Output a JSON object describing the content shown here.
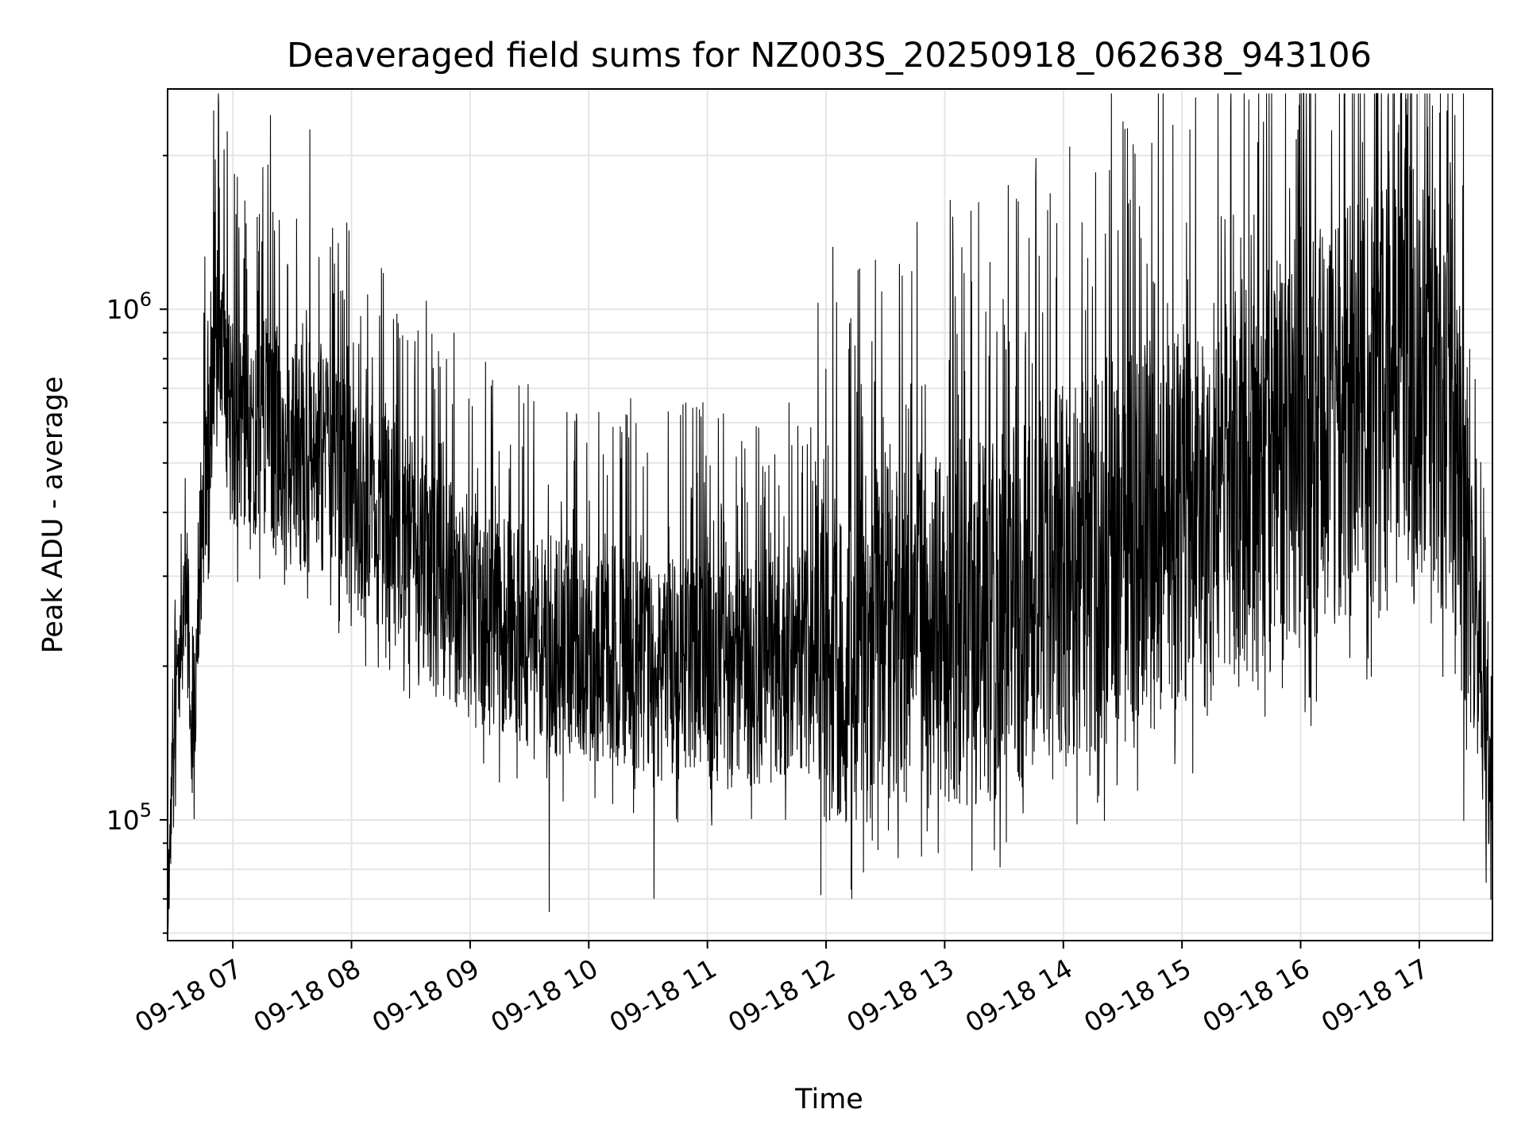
{
  "chart_data": {
    "type": "line",
    "title": "Deaveraged field sums for NZ003S_20250918_062638_943106",
    "xlabel": "Time",
    "ylabel": "Peak ADU - average",
    "xscale": "time",
    "yscale": "log",
    "xlim": [
      "09-18 06:27",
      "09-18 17:37"
    ],
    "ylim": [
      58000,
      2700000
    ],
    "x_ticks": [
      "09-18 07",
      "09-18 08",
      "09-18 09",
      "09-18 10",
      "09-18 11",
      "09-18 12",
      "09-18 13",
      "09-18 14",
      "09-18 15",
      "09-18 16",
      "09-18 17"
    ],
    "y_ticks": [
      {
        "base": "10",
        "exp": "5",
        "value": 100000
      },
      {
        "base": "10",
        "exp": "6",
        "value": 1000000
      }
    ],
    "grid": true,
    "line_color": "#000000",
    "series": [
      {
        "points": [
          [
            "09-18 06:27",
            72000
          ],
          [
            "09-18 06:31",
            150000
          ],
          [
            "09-18 06:36",
            280000
          ],
          [
            "09-18 06:40",
            130000
          ],
          [
            "09-18 06:46",
            500000
          ],
          [
            "09-18 06:52",
            900000
          ],
          [
            "09-18 06:58",
            650000
          ],
          [
            "09-18 07:05",
            550000
          ],
          [
            "09-18 07:15",
            600000
          ],
          [
            "09-18 07:25",
            520000
          ],
          [
            "09-18 07:35",
            480000
          ],
          [
            "09-18 07:45",
            500000
          ],
          [
            "09-18 08:00",
            430000
          ],
          [
            "09-18 08:15",
            380000
          ],
          [
            "09-18 08:30",
            330000
          ],
          [
            "09-18 08:45",
            290000
          ],
          [
            "09-18 09:00",
            260000
          ],
          [
            "09-18 09:15",
            240000
          ],
          [
            "09-18 09:30",
            230000
          ],
          [
            "09-18 09:45",
            220000
          ],
          [
            "09-18 10:00",
            215000
          ],
          [
            "09-18 10:20",
            205000
          ],
          [
            "09-18 10:40",
            200000
          ],
          [
            "09-18 11:00",
            195000
          ],
          [
            "09-18 11:20",
            190000
          ],
          [
            "09-18 11:40",
            200000
          ],
          [
            "09-18 12:00",
            210000
          ],
          [
            "09-18 12:20",
            220000
          ],
          [
            "09-18 12:40",
            230000
          ],
          [
            "09-18 13:00",
            240000
          ],
          [
            "09-18 13:20",
            250000
          ],
          [
            "09-18 13:40",
            270000
          ],
          [
            "09-18 14:00",
            300000
          ],
          [
            "09-18 14:20",
            330000
          ],
          [
            "09-18 14:40",
            360000
          ],
          [
            "09-18 15:00",
            390000
          ],
          [
            "09-18 15:20",
            430000
          ],
          [
            "09-18 15:40",
            480000
          ],
          [
            "09-18 16:00",
            560000
          ],
          [
            "09-18 16:20",
            620000
          ],
          [
            "09-18 16:40",
            680000
          ],
          [
            "09-18 17:00",
            720000
          ],
          [
            "09-18 17:15",
            700000
          ],
          [
            "09-18 17:25",
            280000
          ],
          [
            "09-18 17:30",
            200000
          ],
          [
            "09-18 17:36",
            130000
          ]
        ],
        "extremes": [
          [
            "09-18 07:19",
            2400000
          ],
          [
            "09-18 07:39",
            2250000
          ],
          [
            "09-18 09:40",
            66000
          ],
          [
            "09-18 10:33",
            70000
          ],
          [
            "09-18 12:13",
            70000
          ],
          [
            "09-18 17:14",
            2450000
          ]
        ]
      }
    ]
  }
}
